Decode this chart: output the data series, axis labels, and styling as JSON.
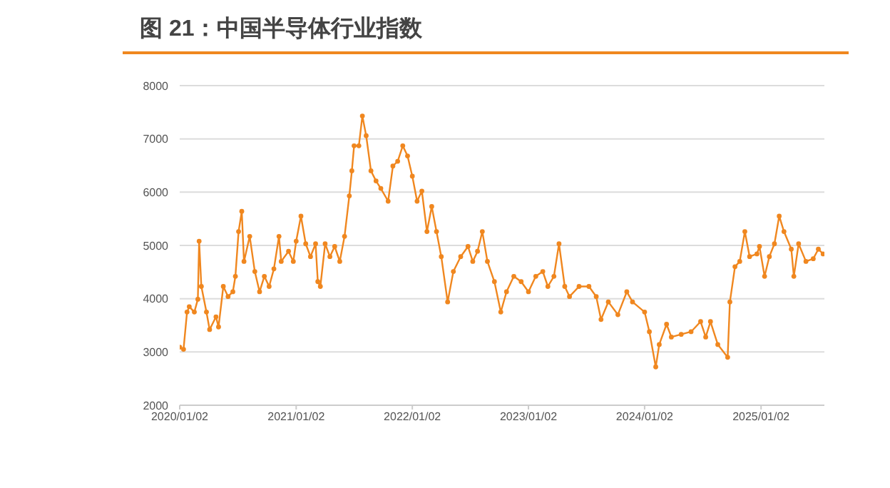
{
  "chart_data": {
    "type": "line",
    "title": "图 21：中国半导体行业指数",
    "x": [
      "2020-01-02",
      "2020-01-14",
      "2020-01-25",
      "2020-02-01",
      "2020-02-17",
      "2020-02-28",
      "2020-03-03",
      "2020-03-10",
      "2020-03-26",
      "2020-04-05",
      "2020-04-25",
      "2020-05-03",
      "2020-05-18",
      "2020-06-02",
      "2020-06-17",
      "2020-06-25",
      "2020-07-05",
      "2020-07-15",
      "2020-07-22",
      "2020-08-09",
      "2020-08-25",
      "2020-09-09",
      "2020-09-24",
      "2020-10-09",
      "2020-10-24",
      "2020-11-09",
      "2020-11-16",
      "2020-12-09",
      "2020-12-24",
      "2021-01-02",
      "2021-01-17",
      "2021-02-01",
      "2021-02-16",
      "2021-03-04",
      "2021-03-11",
      "2021-03-19",
      "2021-04-03",
      "2021-04-18",
      "2021-05-03",
      "2021-05-19",
      "2021-06-03",
      "2021-06-18",
      "2021-06-26",
      "2021-07-03",
      "2021-07-18",
      "2021-07-29",
      "2021-08-10",
      "2021-08-25",
      "2021-09-10",
      "2021-09-25",
      "2021-10-18",
      "2021-11-02",
      "2021-11-17",
      "2021-12-03",
      "2021-12-18",
      "2022-01-02",
      "2022-01-17",
      "2022-02-01",
      "2022-02-17",
      "2022-03-04",
      "2022-03-19",
      "2022-04-03",
      "2022-04-23",
      "2022-05-11",
      "2022-06-03",
      "2022-06-26",
      "2022-07-11",
      "2022-07-26",
      "2022-08-10",
      "2022-08-26",
      "2022-09-17",
      "2022-10-07",
      "2022-10-25",
      "2022-11-17",
      "2022-12-10",
      "2023-01-02",
      "2023-01-25",
      "2023-02-16",
      "2023-03-04",
      "2023-03-23",
      "2023-04-08",
      "2023-04-26",
      "2023-05-11",
      "2023-06-10",
      "2023-07-11",
      "2023-08-03",
      "2023-08-18",
      "2023-09-10",
      "2023-10-10",
      "2023-11-07",
      "2023-11-25",
      "2024-01-02",
      "2024-01-17",
      "2024-02-06",
      "2024-02-17",
      "2024-03-11",
      "2024-03-26",
      "2024-04-26",
      "2024-05-27",
      "2024-06-26",
      "2024-07-12",
      "2024-07-27",
      "2024-08-19",
      "2024-09-19",
      "2024-09-26",
      "2024-10-12",
      "2024-10-27",
      "2024-11-12",
      "2024-11-27",
      "2024-12-20",
      "2024-12-28",
      "2025-01-13",
      "2025-01-28",
      "2025-02-13",
      "2025-02-28",
      "2025-03-15",
      "2025-04-07",
      "2025-04-15",
      "2025-04-30",
      "2025-05-23",
      "2025-06-15",
      "2025-07-01",
      "2025-07-16"
    ],
    "series": [
      {
        "color": "#f0871f",
        "values": [
          3090,
          3050,
          3750,
          3850,
          3750,
          3990,
          5080,
          4230,
          3750,
          3420,
          3660,
          3470,
          4230,
          4040,
          4130,
          4420,
          5260,
          5640,
          4700,
          5170,
          4510,
          4130,
          4420,
          4230,
          4560,
          5170,
          4700,
          4890,
          4700,
          5080,
          5550,
          5030,
          4790,
          5030,
          4320,
          4230,
          5030,
          4790,
          4980,
          4700,
          5170,
          5930,
          6400,
          6870,
          6870,
          7430,
          7060,
          6400,
          6210,
          6070,
          5830,
          6490,
          6580,
          6870,
          6680,
          6300,
          5830,
          6020,
          5260,
          5730,
          5260,
          4790,
          3940,
          4510,
          4790,
          4980,
          4700,
          4890,
          5260,
          4700,
          4320,
          3750,
          4130,
          4420,
          4320,
          4130,
          4420,
          4510,
          4230,
          4420,
          5030,
          4230,
          4040,
          4230,
          4230,
          4040,
          3610,
          3940,
          3700,
          4130,
          3940,
          3750,
          3380,
          2720,
          3140,
          3520,
          3280,
          3330,
          3380,
          3570,
          3280,
          3570,
          3140,
          2900,
          3940,
          4600,
          4700,
          5260,
          4790,
          4840,
          4980,
          4420,
          4790,
          5030,
          5550,
          5260,
          4930,
          4420,
          5030,
          4700,
          4750,
          4930,
          4840
        ]
      }
    ],
    "xlim": [
      "2020-01-02",
      "2025-07-20"
    ],
    "xticks": [
      {
        "value": "2020-01-02",
        "label": "2020/01/02"
      },
      {
        "value": "2021-01-02",
        "label": "2021/01/02"
      },
      {
        "value": "2022-01-02",
        "label": "2022/01/02"
      },
      {
        "value": "2023-01-02",
        "label": "2023/01/02"
      },
      {
        "value": "2024-01-02",
        "label": "2024/01/02"
      },
      {
        "value": "2025-01-02",
        "label": "2025/01/02"
      }
    ],
    "ylim": [
      2000,
      8000
    ],
    "yticks": [
      2000,
      3000,
      4000,
      5000,
      6000,
      7000,
      8000
    ],
    "grid": "y",
    "marker": "circle",
    "line_style": "solid",
    "legend": false
  }
}
